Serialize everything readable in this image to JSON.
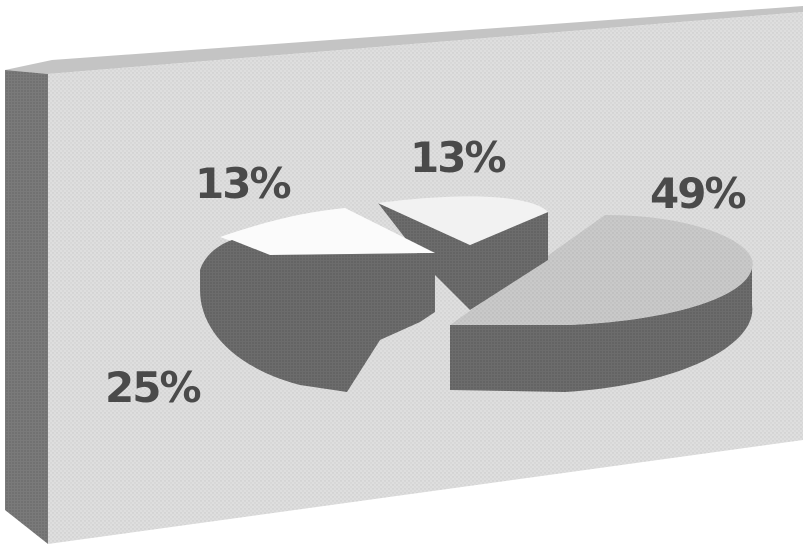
{
  "chart_data": {
    "type": "pie",
    "style": "3d-exploded",
    "title": "",
    "slices": [
      {
        "label": "49%",
        "value": 49,
        "color": "#c9c9c9"
      },
      {
        "label": "13%",
        "value": 13,
        "color": "#f2f2f2"
      },
      {
        "label": "13%",
        "value": 13,
        "color": "#fbfbfb"
      },
      {
        "label": "25%",
        "value": 25,
        "color": "#6c6c6c"
      }
    ],
    "colors": {
      "board_face": "#dedede",
      "board_side": "#7a7a7a",
      "board_top": "#c4c4c4",
      "label": "#4a4a4a"
    }
  }
}
